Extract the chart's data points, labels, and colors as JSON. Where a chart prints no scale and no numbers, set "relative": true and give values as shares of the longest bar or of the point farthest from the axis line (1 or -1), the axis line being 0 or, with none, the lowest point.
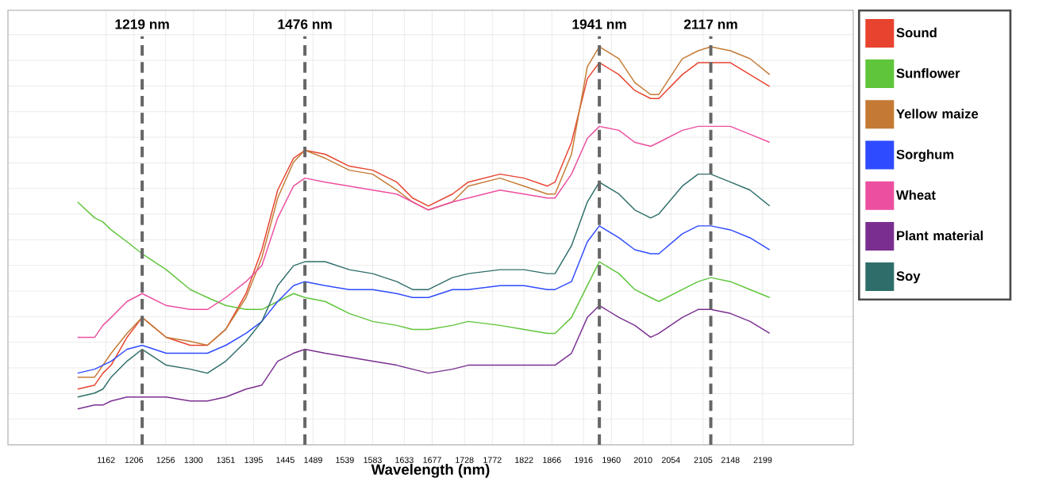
{
  "chart_data": {
    "type": "line",
    "relative": true,
    "xlabel": "Wavelength (nm)",
    "x": [
      1117,
      1144,
      1157,
      1170,
      1195,
      1219,
      1257,
      1295,
      1322,
      1351,
      1383,
      1408,
      1433,
      1458,
      1476,
      1508,
      1546,
      1583,
      1621,
      1646,
      1671,
      1709,
      1734,
      1784,
      1822,
      1859,
      1871,
      1897,
      1922,
      1941,
      1972,
      1997,
      2022,
      2035,
      2072,
      2097,
      2117,
      2148,
      2179,
      2210
    ],
    "xlim": [
      1007,
      2342
    ],
    "xticks": [
      1162,
      1206,
      1256,
      1300,
      1351,
      1395,
      1445,
      1489,
      1539,
      1583,
      1633,
      1677,
      1728,
      1772,
      1822,
      1866,
      1916,
      1960,
      2010,
      2054,
      2105,
      2148,
      2199
    ],
    "series": [
      {
        "name": "Sound",
        "color": "#e8432f",
        "values": [
          0.14,
          0.15,
          0.18,
          0.2,
          0.27,
          0.32,
          0.27,
          0.25,
          0.25,
          0.29,
          0.38,
          0.49,
          0.64,
          0.72,
          0.74,
          0.73,
          0.7,
          0.69,
          0.66,
          0.62,
          0.6,
          0.63,
          0.66,
          0.68,
          0.67,
          0.65,
          0.66,
          0.76,
          0.92,
          0.96,
          0.93,
          0.89,
          0.87,
          0.87,
          0.93,
          0.96,
          0.96,
          0.96,
          0.93,
          0.9
        ]
      },
      {
        "name": "Sunflower",
        "color": "#5fc53b",
        "values": [
          0.61,
          0.57,
          0.56,
          0.54,
          0.51,
          0.48,
          0.44,
          0.39,
          0.37,
          0.35,
          0.34,
          0.34,
          0.36,
          0.38,
          0.37,
          0.36,
          0.33,
          0.31,
          0.3,
          0.29,
          0.29,
          0.3,
          0.31,
          0.3,
          0.29,
          0.28,
          0.28,
          0.32,
          0.4,
          0.46,
          0.43,
          0.39,
          0.37,
          0.36,
          0.39,
          0.41,
          0.42,
          0.41,
          0.39,
          0.37
        ]
      },
      {
        "name": "Yellow maize",
        "color": "#c47a34",
        "values": [
          0.17,
          0.17,
          0.2,
          0.23,
          0.28,
          0.32,
          0.27,
          0.26,
          0.25,
          0.29,
          0.37,
          0.47,
          0.62,
          0.71,
          0.74,
          0.72,
          0.69,
          0.68,
          0.64,
          0.61,
          0.59,
          0.61,
          0.65,
          0.67,
          0.65,
          0.63,
          0.63,
          0.73,
          0.95,
          1,
          0.97,
          0.91,
          0.88,
          0.88,
          0.97,
          0.99,
          1,
          0.99,
          0.97,
          0.93
        ]
      },
      {
        "name": "Sorghum",
        "color": "#2f4bff",
        "values": [
          0.18,
          0.19,
          0.2,
          0.21,
          0.24,
          0.25,
          0.23,
          0.23,
          0.23,
          0.25,
          0.28,
          0.31,
          0.36,
          0.4,
          0.41,
          0.4,
          0.39,
          0.39,
          0.38,
          0.37,
          0.37,
          0.39,
          0.39,
          0.4,
          0.4,
          0.39,
          0.39,
          0.41,
          0.51,
          0.55,
          0.52,
          0.49,
          0.48,
          0.48,
          0.53,
          0.55,
          0.55,
          0.54,
          0.52,
          0.49
        ]
      },
      {
        "name": "Wheat",
        "color": "#ec4fa0",
        "values": [
          0.27,
          0.27,
          0.3,
          0.32,
          0.36,
          0.38,
          0.35,
          0.34,
          0.34,
          0.37,
          0.41,
          0.45,
          0.57,
          0.65,
          0.67,
          0.66,
          0.65,
          0.64,
          0.63,
          0.61,
          0.59,
          0.61,
          0.62,
          0.64,
          0.63,
          0.62,
          0.62,
          0.68,
          0.77,
          0.8,
          0.79,
          0.76,
          0.75,
          0.76,
          0.79,
          0.8,
          0.8,
          0.8,
          0.78,
          0.76
        ]
      },
      {
        "name": "Plant material",
        "color": "#7a2f90",
        "values": [
          0.09,
          0.1,
          0.1,
          0.11,
          0.12,
          0.12,
          0.12,
          0.11,
          0.11,
          0.12,
          0.14,
          0.15,
          0.21,
          0.23,
          0.24,
          0.23,
          0.22,
          0.21,
          0.2,
          0.19,
          0.18,
          0.19,
          0.2,
          0.2,
          0.2,
          0.2,
          0.2,
          0.23,
          0.32,
          0.35,
          0.32,
          0.3,
          0.27,
          0.28,
          0.32,
          0.34,
          0.34,
          0.33,
          0.31,
          0.28
        ]
      },
      {
        "name": "Soy",
        "color": "#2e6e6a",
        "values": [
          0.12,
          0.13,
          0.14,
          0.17,
          0.21,
          0.24,
          0.2,
          0.19,
          0.18,
          0.21,
          0.26,
          0.31,
          0.4,
          0.45,
          0.46,
          0.46,
          0.44,
          0.43,
          0.41,
          0.39,
          0.39,
          0.42,
          0.43,
          0.44,
          0.44,
          0.43,
          0.43,
          0.5,
          0.61,
          0.66,
          0.63,
          0.59,
          0.57,
          0.58,
          0.65,
          0.68,
          0.68,
          0.66,
          0.64,
          0.6
        ]
      }
    ],
    "ref_lines": [
      {
        "axis": "x",
        "value": 1219,
        "label": "1219 nm",
        "color": "#666666",
        "line_style": "dashed"
      },
      {
        "axis": "x",
        "value": 1476,
        "label": "1476 nm",
        "color": "#666666",
        "line_style": "dashed"
      },
      {
        "axis": "x",
        "value": 1941,
        "label": "1941 nm",
        "color": "#666666",
        "line_style": "dashed"
      },
      {
        "axis": "x",
        "value": 2117,
        "label": "2117 nm",
        "color": "#666666",
        "line_style": "dashed"
      }
    ],
    "grid": true,
    "legend": "right",
    "line_style": "solid",
    "tick_labels": "x"
  }
}
